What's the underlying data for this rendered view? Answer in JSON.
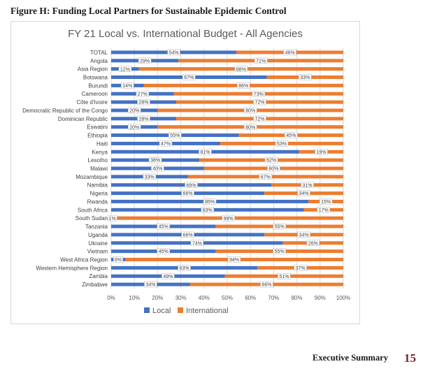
{
  "figure_caption": "Figure H: Funding Local Partners for Sustainable Epidemic Control",
  "footer": {
    "section": "Executive Summary",
    "page_number": "15"
  },
  "colors": {
    "local": "#4472C4",
    "international": "#ED7D31",
    "grid": "#d9d9d9",
    "label_box_border": "#bfbfbf"
  },
  "chart_data": {
    "type": "bar",
    "orientation": "horizontal",
    "stacked": "100%",
    "title": "FY 21 Local vs. International Budget - All Agencies",
    "categories": [
      "TOTAL",
      "Angola",
      "Asia Region",
      "Botswana",
      "Burundi",
      "Cameroon",
      "Côte d'Ivoire",
      "Democratic Republic of the Congo",
      "Dominican Republic",
      "Eswatini",
      "Ethiopia",
      "Haiti",
      "Kenya",
      "Lesotho",
      "Malawi",
      "Mozambique",
      "Namibia",
      "Nigeria",
      "Rwanda",
      "South Africa",
      "South Sudan",
      "Tanzania",
      "Uganda",
      "Ukraine",
      "Vietnam",
      "West Africa Region",
      "Western Hemisphere Region",
      "Zambia",
      "Zimbabwe"
    ],
    "series": [
      {
        "name": "Local",
        "values": [
          54,
          29,
          12,
          67,
          14,
          27,
          28,
          20,
          28,
          20,
          55,
          47,
          81,
          38,
          40,
          33,
          69,
          66,
          85,
          83,
          1,
          45,
          66,
          74,
          45,
          6,
          63,
          49,
          34
        ]
      },
      {
        "name": "International",
        "values": [
          46,
          71,
          88,
          33,
          86,
          73,
          72,
          80,
          72,
          80,
          45,
          53,
          19,
          62,
          60,
          67,
          31,
          34,
          15,
          17,
          99,
          55,
          34,
          26,
          55,
          94,
          37,
          51,
          66
        ]
      }
    ],
    "xlim": [
      0,
      100
    ],
    "x_ticks": [
      "0%",
      "10%",
      "20%",
      "30%",
      "40%",
      "50%",
      "60%",
      "70%",
      "80%",
      "90%",
      "100%"
    ],
    "grid": true,
    "legend_position": "bottom",
    "data_label_format": "percent"
  }
}
